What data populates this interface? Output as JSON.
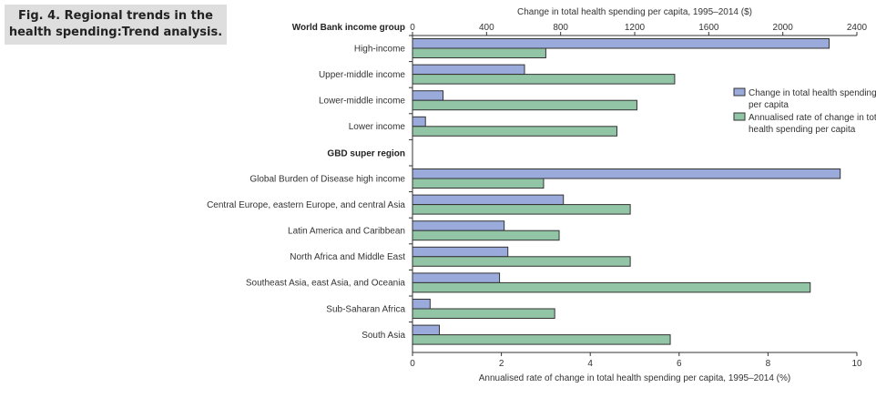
{
  "caption": {
    "line1": "Fig. 4. Regional trends in the",
    "line2": "health spending:Trend analysis."
  },
  "colors": {
    "blue": "#9aabdb",
    "green": "#92c4a6",
    "border": "#333333"
  },
  "chart_data": {
    "type": "bar",
    "orientation": "horizontal",
    "top_axis": {
      "label": "Change in total health spending per capita, 1995–2014 ($)",
      "range": [
        0,
        2400
      ],
      "ticks": [
        "0",
        "400",
        "800",
        "1200",
        "1600",
        "2000",
        "2400"
      ],
      "tick_values": [
        0,
        400,
        800,
        1200,
        1600,
        2000,
        2400
      ]
    },
    "bottom_axis": {
      "label": "Annualised rate of change in total health spending per capita, 1995–2014 (%)",
      "range": [
        0,
        10
      ],
      "ticks": [
        "0",
        "2",
        "4",
        "6",
        "8",
        "10"
      ],
      "tick_values": [
        0,
        2,
        4,
        6,
        8,
        10
      ]
    },
    "legend": {
      "placement": "right",
      "entries": [
        {
          "line1": "Change in total health spending",
          "line2": "per capita",
          "series": "change"
        },
        {
          "line1": "Annualised rate of change in total",
          "line2": "health spending per capita",
          "series": "rate"
        }
      ]
    },
    "groups": [
      {
        "title": "World Bank income group",
        "categories": [
          {
            "label": "High-income",
            "change": 2250,
            "rate": 3.0
          },
          {
            "label": "Upper-middle income",
            "change": 605,
            "rate": 5.9
          },
          {
            "label": "Lower-middle income",
            "change": 165,
            "rate": 5.05
          },
          {
            "label": "Lower income",
            "change": 70,
            "rate": 4.6
          }
        ]
      },
      {
        "title": "GBD super region",
        "categories": [
          {
            "label": "Global Burden of Disease high income",
            "change": 2310,
            "rate": 2.95
          },
          {
            "label": "Central Europe, eastern Europe, and central Asia",
            "change": 815,
            "rate": 4.9
          },
          {
            "label": "Latin America and Caribbean",
            "change": 495,
            "rate": 3.3
          },
          {
            "label": "North Africa and Middle East",
            "change": 515,
            "rate": 4.9
          },
          {
            "label": "Southeast Asia, east Asia, and Oceania",
            "change": 470,
            "rate": 8.95
          },
          {
            "label": "Sub-Saharan Africa",
            "change": 95,
            "rate": 3.2
          },
          {
            "label": "South Asia",
            "change": 145,
            "rate": 5.8
          }
        ]
      }
    ]
  }
}
